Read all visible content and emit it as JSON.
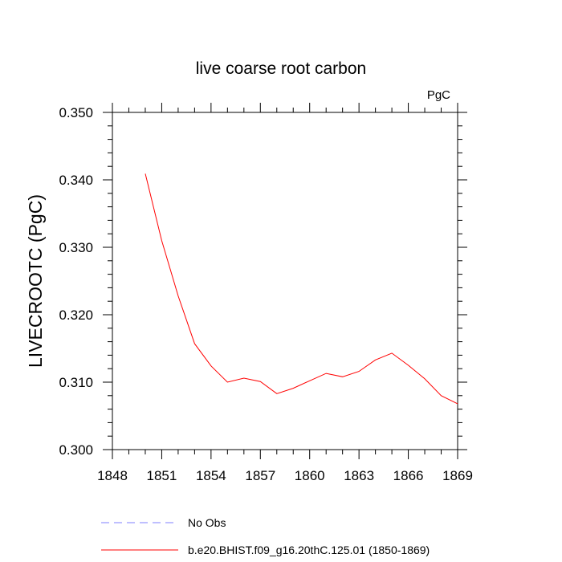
{
  "chart_data": {
    "type": "line",
    "title": "live coarse root carbon",
    "units_label": "PgC",
    "ylabel": "LIVECROOTC  (PgC)",
    "xlabel": "",
    "xlim": [
      1848,
      1869
    ],
    "ylim": [
      0.3,
      0.35
    ],
    "x_ticks": [
      1848,
      1851,
      1854,
      1857,
      1860,
      1863,
      1866,
      1869
    ],
    "x_tick_labels": [
      "1848",
      "1851",
      "1854",
      "1857",
      "1860",
      "1863",
      "1866",
      "1869"
    ],
    "y_ticks": [
      0.3,
      0.31,
      0.32,
      0.33,
      0.34,
      0.35
    ],
    "y_tick_labels": [
      "0.300",
      "0.310",
      "0.320",
      "0.330",
      "0.340",
      "0.350"
    ],
    "grid": false,
    "legend_position": "bottom",
    "series": [
      {
        "name": "b.e20.BHIST.f09_g16.20thC.125.01 (1850-1869)",
        "color": "#ff0000",
        "dash": "solid",
        "x": [
          1850,
          1851,
          1852,
          1853,
          1854,
          1855,
          1856,
          1857,
          1858,
          1859,
          1860,
          1861,
          1862,
          1863,
          1864,
          1865,
          1866,
          1867,
          1868,
          1869
        ],
        "values": [
          0.3409,
          0.331,
          0.3228,
          0.3157,
          0.3124,
          0.31,
          0.3106,
          0.3101,
          0.3083,
          0.3091,
          0.3102,
          0.3113,
          0.3108,
          0.3116,
          0.3133,
          0.3143,
          0.3125,
          0.3105,
          0.308,
          0.3068
        ]
      },
      {
        "name": "No Obs",
        "color": "#7f7fff",
        "dash": "dashed",
        "x": [],
        "values": []
      }
    ]
  }
}
